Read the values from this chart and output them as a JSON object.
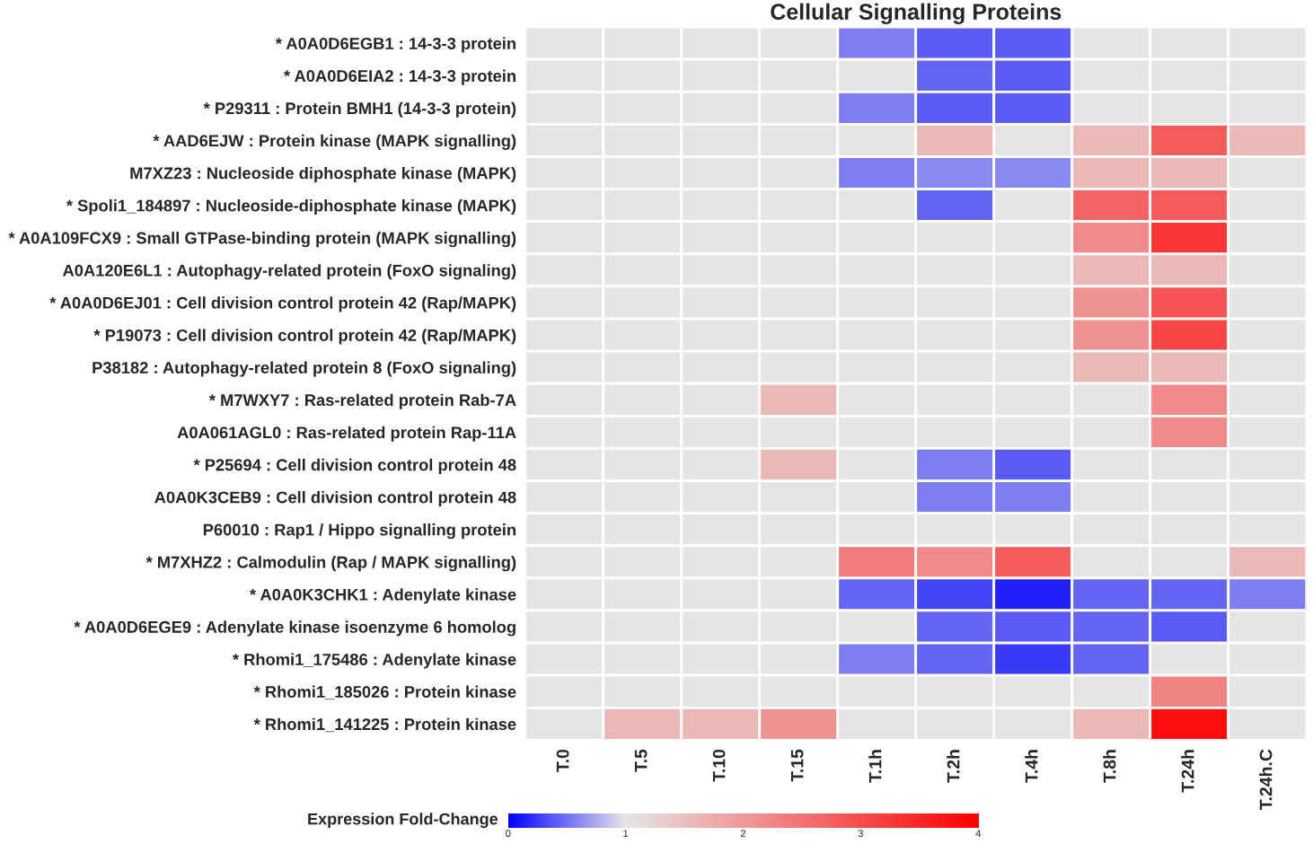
{
  "chart_data": {
    "type": "heatmap",
    "title": "Cellular Signalling Proteins",
    "clabel": "Expression Fold-Change",
    "categories": [
      "T.0",
      "T.5",
      "T.10",
      "T.15",
      "T.1h",
      "T.2h",
      "T.4h",
      "T.8h",
      "T.24h",
      "T.24h.C"
    ],
    "y_categories": [
      "* A0A0D6EGB1 : 14-3-3 protein",
      "* A0A0D6EIA2 : 14-3-3 protein",
      "* P29311 : Protein BMH1 (14-3-3 protein)",
      "* AAD6EJW : Protein kinase (MAPK signalling)",
      "M7XZ23 : Nucleoside diphosphate kinase (MAPK)",
      "* Spoli1_184897 : Nucleoside-diphosphate kinase (MAPK)",
      "* A0A109FCX9 : Small GTPase-binding protein (MAPK signalling)",
      "A0A120E6L1 : Autophagy-related protein (FoxO signaling)",
      "* A0A0D6EJ01 : Cell division control protein 42 (Rap/MAPK)",
      "* P19073 : Cell division control protein 42 (Rap/MAPK)",
      "P38182 : Autophagy-related protein 8 (FoxO signaling)",
      "* M7WXY7 : Ras-related protein Rab-7A",
      "A0A061AGL0 : Ras-related protein Rap-11A",
      "* P25694 : Cell division control protein 48",
      "A0A0K3CEB9 : Cell division control protein 48",
      "P60010 : Rap1 / Hippo signalling protein",
      "* M7XHZ2 : Calmodulin (Rap / MAPK signalling)",
      "* A0A0K3CHK1 : Adenylate kinase",
      "* A0A0D6EGE9 : Adenylate kinase isoenzyme 6 homolog",
      "* Rhomi1_175486 : Adenylate kinase",
      "* Rhomi1_185026 : Protein kinase",
      "* Rhomi1_141225 : Protein kinase"
    ],
    "cells": [
      [
        null,
        null,
        null,
        null,
        0.55,
        0.4,
        0.4,
        null,
        null,
        null
      ],
      [
        null,
        null,
        null,
        null,
        null,
        0.45,
        0.4,
        null,
        null,
        null
      ],
      [
        null,
        null,
        null,
        null,
        0.55,
        0.4,
        0.4,
        null,
        null,
        null
      ],
      [
        null,
        null,
        null,
        null,
        null,
        1.6,
        null,
        1.6,
        2.8,
        1.6
      ],
      [
        null,
        null,
        null,
        null,
        0.55,
        0.6,
        0.6,
        1.6,
        1.6,
        null
      ],
      [
        null,
        null,
        null,
        null,
        null,
        0.45,
        null,
        2.7,
        2.8,
        null
      ],
      [
        null,
        null,
        null,
        null,
        null,
        null,
        null,
        2.2,
        3.3,
        null
      ],
      [
        null,
        null,
        null,
        null,
        null,
        null,
        null,
        1.6,
        1.6,
        null
      ],
      [
        null,
        null,
        null,
        null,
        null,
        null,
        null,
        2.1,
        2.9,
        null
      ],
      [
        null,
        null,
        null,
        null,
        null,
        null,
        null,
        2.1,
        3.1,
        null
      ],
      [
        null,
        null,
        null,
        null,
        null,
        null,
        null,
        1.6,
        1.6,
        null
      ],
      [
        null,
        null,
        null,
        1.6,
        null,
        null,
        null,
        null,
        2.2,
        null
      ],
      [
        null,
        null,
        null,
        null,
        null,
        null,
        null,
        null,
        2.2,
        null
      ],
      [
        null,
        null,
        null,
        1.6,
        null,
        0.55,
        0.4,
        null,
        null,
        null
      ],
      [
        null,
        null,
        null,
        null,
        null,
        0.55,
        0.55,
        null,
        null,
        null
      ],
      [
        null,
        null,
        null,
        null,
        null,
        null,
        null,
        null,
        null,
        null
      ],
      [
        null,
        null,
        null,
        null,
        2.4,
        2.2,
        2.8,
        null,
        null,
        1.6
      ],
      [
        null,
        null,
        null,
        null,
        0.45,
        0.3,
        0.15,
        0.45,
        0.45,
        0.55
      ],
      [
        null,
        null,
        null,
        null,
        null,
        0.45,
        0.4,
        0.45,
        0.4,
        null
      ],
      [
        null,
        null,
        null,
        null,
        0.55,
        0.45,
        0.25,
        0.45,
        null,
        null
      ],
      [
        null,
        null,
        null,
        null,
        null,
        null,
        null,
        null,
        2.3,
        null
      ],
      [
        null,
        1.6,
        1.6,
        2.1,
        null,
        null,
        null,
        1.6,
        3.8,
        null
      ]
    ],
    "clim": [
      0,
      4
    ],
    "cticks": [
      0,
      1,
      2,
      3,
      4
    ]
  }
}
